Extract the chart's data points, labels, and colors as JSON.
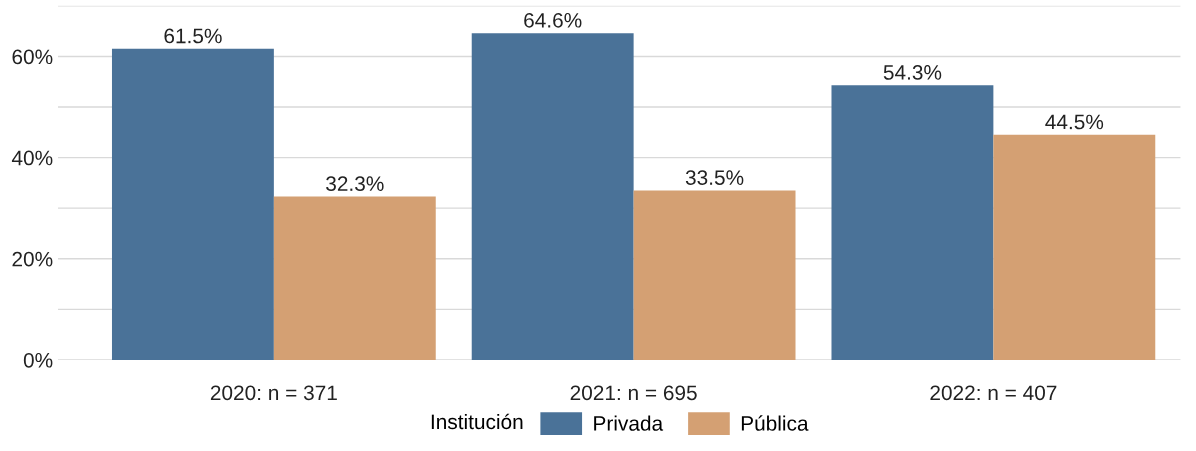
{
  "chart_data": {
    "type": "bar",
    "categories": [
      "2020: n = 371",
      "2021: n = 695",
      "2022: n = 407"
    ],
    "series": [
      {
        "name": "Privada",
        "color": "#4a7298",
        "values": [
          61.5,
          64.6,
          54.3
        ],
        "value_labels": [
          "61.5%",
          "64.6%",
          "54.3%"
        ]
      },
      {
        "name": "Pública",
        "color": "#d4a073",
        "values": [
          32.3,
          33.5,
          44.5
        ],
        "value_labels": [
          "32.3%",
          "33.5%",
          "44.5%"
        ]
      }
    ],
    "ylim": [
      0,
      70
    ],
    "yticks": [
      {
        "value": 0,
        "label": "0%"
      },
      {
        "value": 10,
        "label": null
      },
      {
        "value": 20,
        "label": "20%"
      },
      {
        "value": 30,
        "label": null
      },
      {
        "value": 40,
        "label": "40%"
      },
      {
        "value": 50,
        "label": null
      },
      {
        "value": 60,
        "label": "60%"
      },
      {
        "value": 70,
        "label": null
      }
    ],
    "grid": "y",
    "legend": "bottom",
    "legend_title": "Institución"
  }
}
